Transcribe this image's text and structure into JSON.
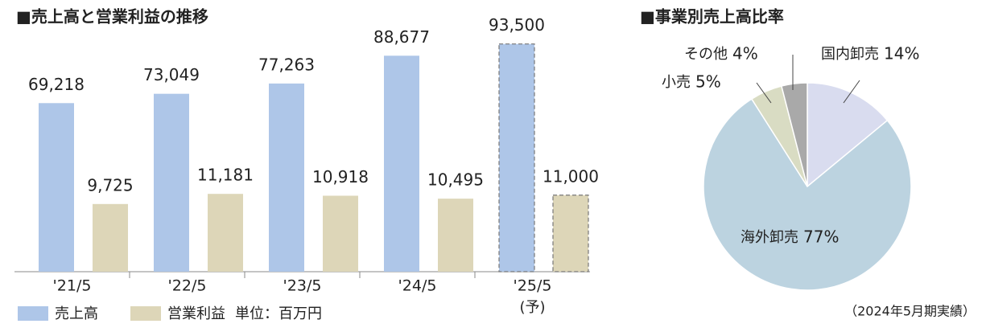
{
  "chart_data": [
    {
      "type": "bar",
      "title": "■売上高と営業利益の推移",
      "categories": [
        "'21/5",
        "'22/5",
        "'23/5",
        "'24/5",
        "'25/5"
      ],
      "forecast": {
        "category": 4,
        "label": "(予)"
      },
      "series": [
        {
          "name": "売上高",
          "color": "#aec6e8",
          "values": [
            69218,
            73049,
            77263,
            88677,
            93500
          ],
          "value_labels": [
            "69,218",
            "73,049",
            "77,263",
            "88,677",
            "93,500"
          ]
        },
        {
          "name": "営業利益",
          "color": "#ddd6b8",
          "axis": "y2",
          "values": [
            9725,
            11181,
            10918,
            10495,
            11000
          ],
          "value_labels": [
            "9,725",
            "11,181",
            "10,918",
            "10,495",
            "11,000"
          ]
        }
      ],
      "ylim": [
        0,
        100000
      ],
      "y2lim": [
        0,
        35000
      ],
      "unit": "単位：百万円"
    },
    {
      "type": "pie",
      "title": "■事業別売上高比率",
      "categories": [
        "国内卸売",
        "海外卸売",
        "小売",
        "その他"
      ],
      "values": [
        14,
        77,
        5,
        4
      ],
      "value_labels": [
        "14%",
        "77%",
        "5%",
        "4%"
      ],
      "colors": [
        "#d9dcef",
        "#bcd3e0",
        "#d9dcc3",
        "#a9a9a9"
      ],
      "note": "（2024年5月期実績）"
    }
  ]
}
